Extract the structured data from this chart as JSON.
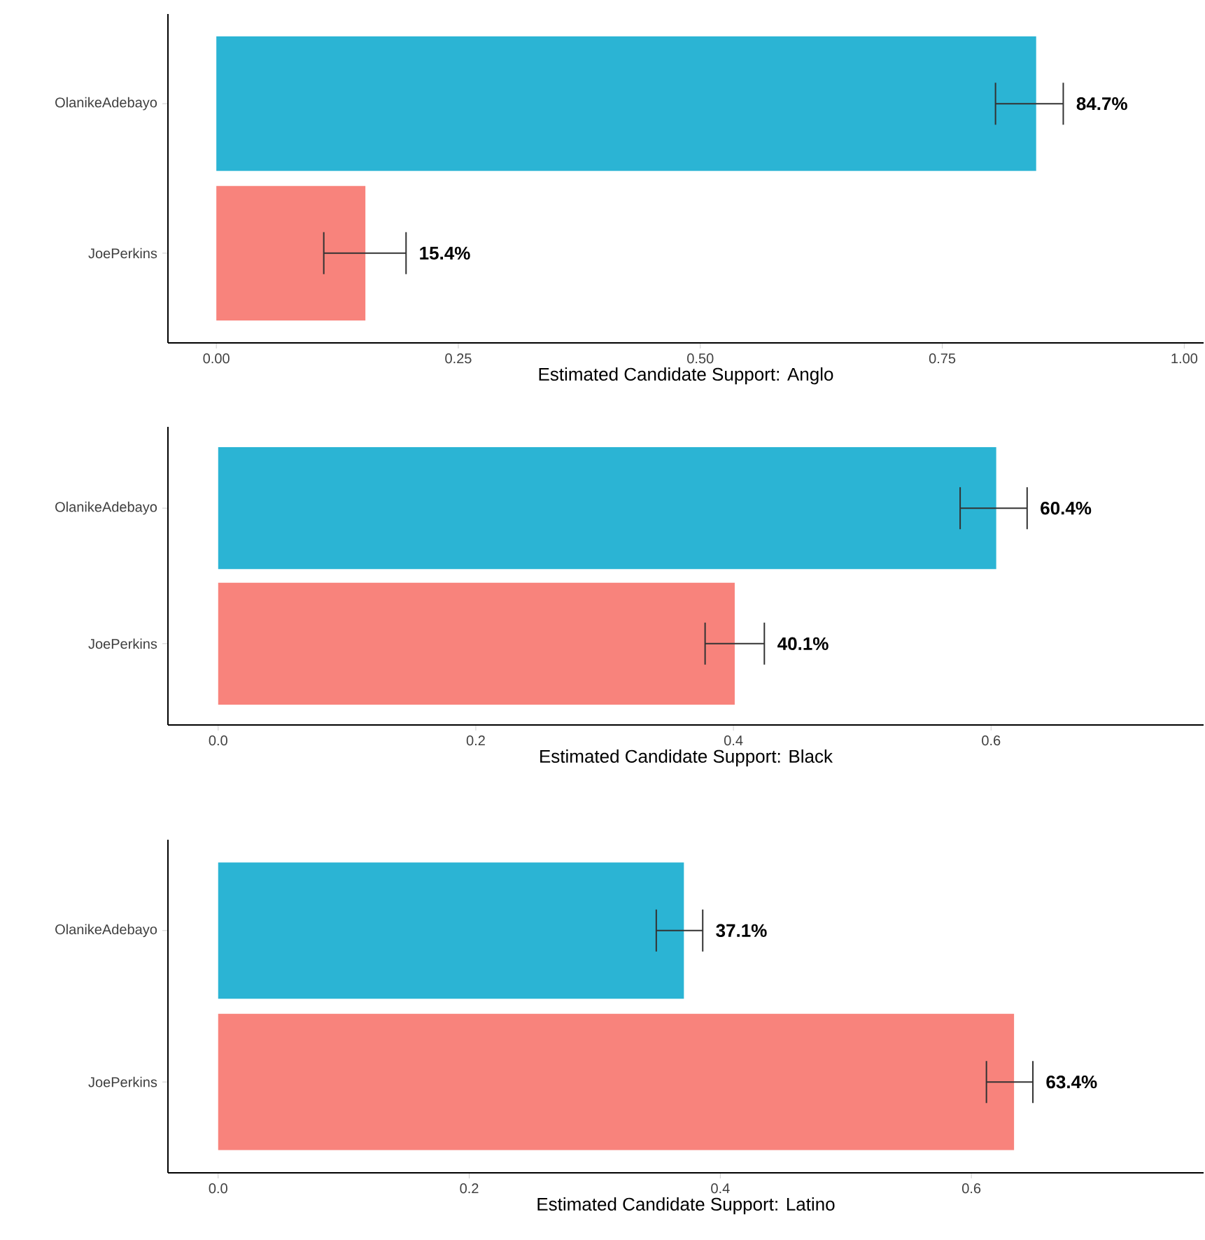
{
  "chart_data": [
    {
      "type": "bar",
      "orientation": "horizontal",
      "xlabel": "Estimated Candidate Support: Anglo",
      "categories": [
        "OlanikeAdebayo",
        "JoePerkins"
      ],
      "values": [
        0.847,
        0.154
      ],
      "colors": [
        "#2bb4d4",
        "#f8837c"
      ],
      "errors": [
        [
          0.805,
          0.875
        ],
        [
          0.111,
          0.196
        ]
      ],
      "value_labels": [
        "84.7%",
        "15.4%"
      ],
      "xlim": [
        -0.05,
        1.02
      ],
      "xticks": [
        {
          "value": 0,
          "label": "0.00"
        },
        {
          "value": 0.25,
          "label": "0.25"
        },
        {
          "value": 0.5,
          "label": "0.50"
        },
        {
          "value": 0.75,
          "label": "0.75"
        },
        {
          "value": 1,
          "label": "1.00"
        }
      ]
    },
    {
      "type": "bar",
      "orientation": "horizontal",
      "xlabel": "Estimated Candidate Support: Black",
      "categories": [
        "OlanikeAdebayo",
        "JoePerkins"
      ],
      "values": [
        0.604,
        0.401
      ],
      "colors": [
        "#2bb4d4",
        "#f8837c"
      ],
      "errors": [
        [
          0.576,
          0.628
        ],
        [
          0.378,
          0.424
        ]
      ],
      "value_labels": [
        "60.4%",
        "40.1%"
      ],
      "xlim": [
        -0.039,
        0.765
      ],
      "xticks": [
        {
          "value": 0,
          "label": "0.0"
        },
        {
          "value": 0.2,
          "label": "0.2"
        },
        {
          "value": 0.4,
          "label": "0.4"
        },
        {
          "value": 0.6,
          "label": "0.6"
        }
      ]
    },
    {
      "type": "bar",
      "orientation": "horizontal",
      "xlabel": "Estimated Candidate Support: Latino",
      "categories": [
        "OlanikeAdebayo",
        "JoePerkins"
      ],
      "values": [
        0.371,
        0.634
      ],
      "colors": [
        "#2bb4d4",
        "#f8837c"
      ],
      "errors": [
        [
          0.349,
          0.386
        ],
        [
          0.612,
          0.649
        ]
      ],
      "value_labels": [
        "37.1%",
        "63.4%"
      ],
      "xlim": [
        -0.04,
        0.785
      ],
      "xticks": [
        {
          "value": 0,
          "label": "0.0"
        },
        {
          "value": 0.2,
          "label": "0.2"
        },
        {
          "value": 0.4,
          "label": "0.4"
        },
        {
          "value": 0.6,
          "label": "0.6"
        }
      ]
    }
  ]
}
